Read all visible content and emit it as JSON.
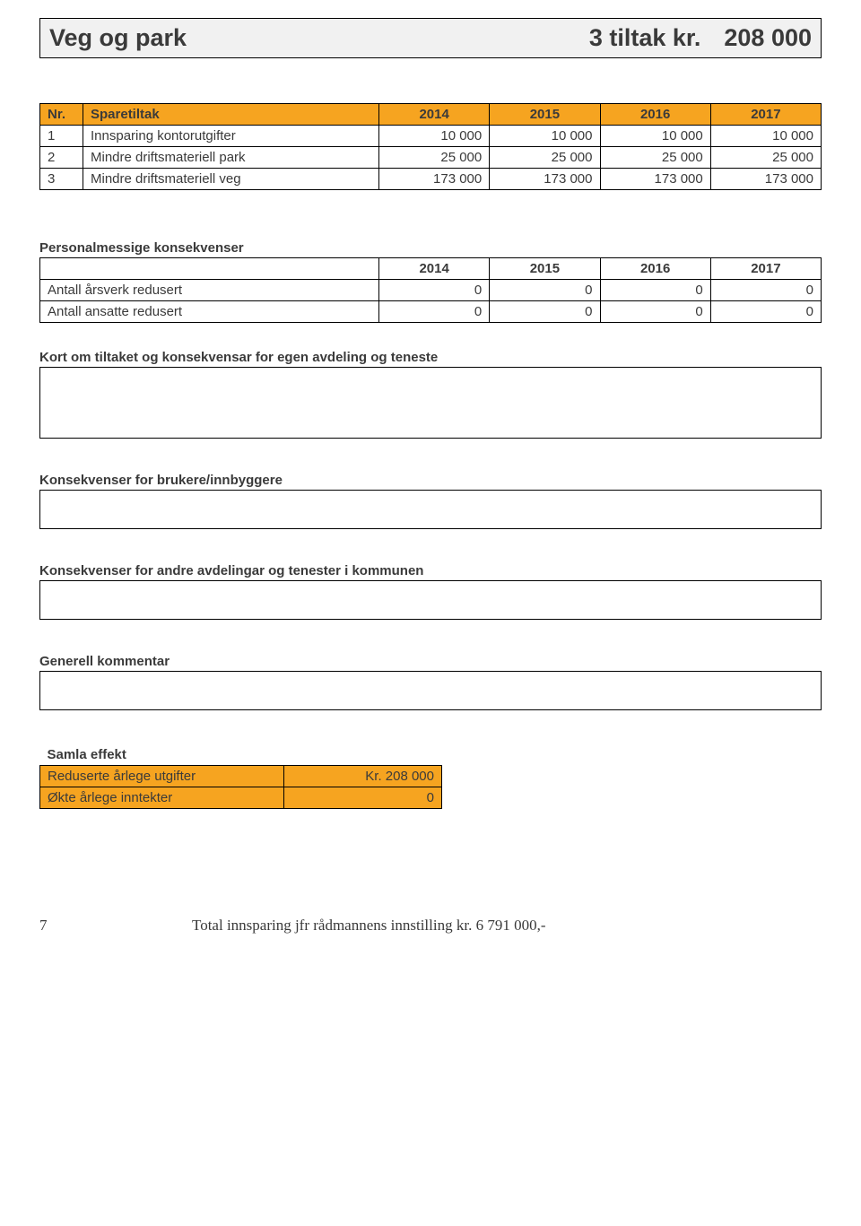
{
  "title": {
    "left": "Veg og park",
    "right_label": "3 tiltak kr.",
    "right_value": "208 000"
  },
  "sparetiltak": {
    "headers": [
      "Nr.",
      "Sparetiltak",
      "2014",
      "2015",
      "2016",
      "2017"
    ],
    "rows": [
      {
        "nr": "1",
        "label": "Innsparing kontorutgifter",
        "v": [
          "10 000",
          "10 000",
          "10 000",
          "10 000"
        ]
      },
      {
        "nr": "2",
        "label": "Mindre driftsmateriell park",
        "v": [
          "25 000",
          "25 000",
          "25 000",
          "25 000"
        ]
      },
      {
        "nr": "3",
        "label": "Mindre driftsmateriell veg",
        "v": [
          "173 000",
          "173 000",
          "173 000",
          "173 000"
        ]
      }
    ]
  },
  "personnel": {
    "heading": "Personalmessige konsekvenser",
    "year_headers": [
      "2014",
      "2015",
      "2016",
      "2017"
    ],
    "rows": [
      {
        "label": "Antall årsverk redusert",
        "v": [
          "0",
          "0",
          "0",
          "0"
        ]
      },
      {
        "label": "Antall ansatte redusert",
        "v": [
          "0",
          "0",
          "0",
          "0"
        ]
      }
    ]
  },
  "sections": {
    "s1": "Kort om tiltaket og konsekvensar for egen avdeling og teneste",
    "s2": "Konsekvenser for brukere/innbyggere",
    "s3": "Konsekvenser for andre avdelingar og tenester i kommunen",
    "s4": "Generell kommentar"
  },
  "samla": {
    "heading": "Samla effekt",
    "rows": [
      {
        "label": "Reduserte årlege utgifter",
        "val": "Kr. 208 000"
      },
      {
        "label": "Økte årlege inntekter",
        "val": "0"
      }
    ]
  },
  "footer": {
    "page": "7",
    "text": "Total innsparing jfr rådmannens innstilling kr. 6 791 000,-"
  },
  "colors": {
    "accent": "#f6a420",
    "titlebg": "#f1f1f1",
    "border": "#000000",
    "text": "#3a3a3a"
  }
}
